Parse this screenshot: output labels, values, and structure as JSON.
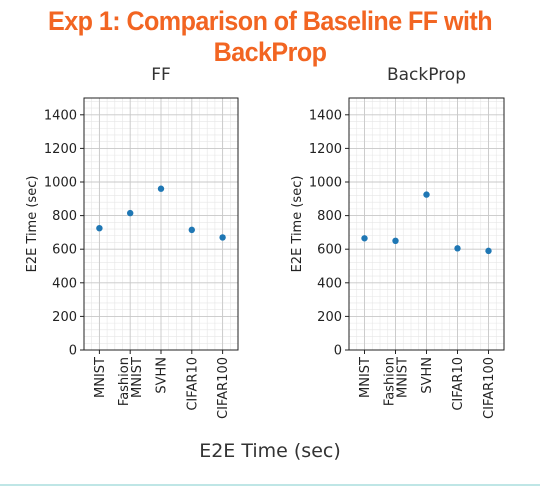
{
  "slide": {
    "title": "Exp 1: Comparison of Baseline FF with BackProp",
    "shared_xlabel": "E2E Time (sec)"
  },
  "colors": {
    "title": "#f26522",
    "points": "#1f77b4",
    "grid_major": "#c8c8c8",
    "grid_minor": "#e6e6e6"
  },
  "chart_data": [
    {
      "type": "scatter",
      "title": "FF",
      "xlabel": "",
      "ylabel": "E2E Time (sec)",
      "categories": [
        "MNIST",
        "Fashion\nMNIST",
        "SVHN",
        "CIFAR10",
        "CIFAR100"
      ],
      "values": [
        725,
        815,
        960,
        715,
        670
      ],
      "ylim": [
        0,
        1500
      ],
      "yticks": [
        0,
        200,
        400,
        600,
        800,
        1000,
        1200,
        1400
      ],
      "grid": true,
      "legend": "none"
    },
    {
      "type": "scatter",
      "title": "BackProp",
      "xlabel": "",
      "ylabel": "E2E Time (sec)",
      "categories": [
        "MNIST",
        "Fashion\nMNIST",
        "SVHN",
        "CIFAR10",
        "CIFAR100"
      ],
      "values": [
        665,
        650,
        925,
        605,
        590
      ],
      "ylim": [
        0,
        1500
      ],
      "yticks": [
        0,
        200,
        400,
        600,
        800,
        1000,
        1200,
        1400
      ],
      "grid": true,
      "legend": "none"
    }
  ]
}
